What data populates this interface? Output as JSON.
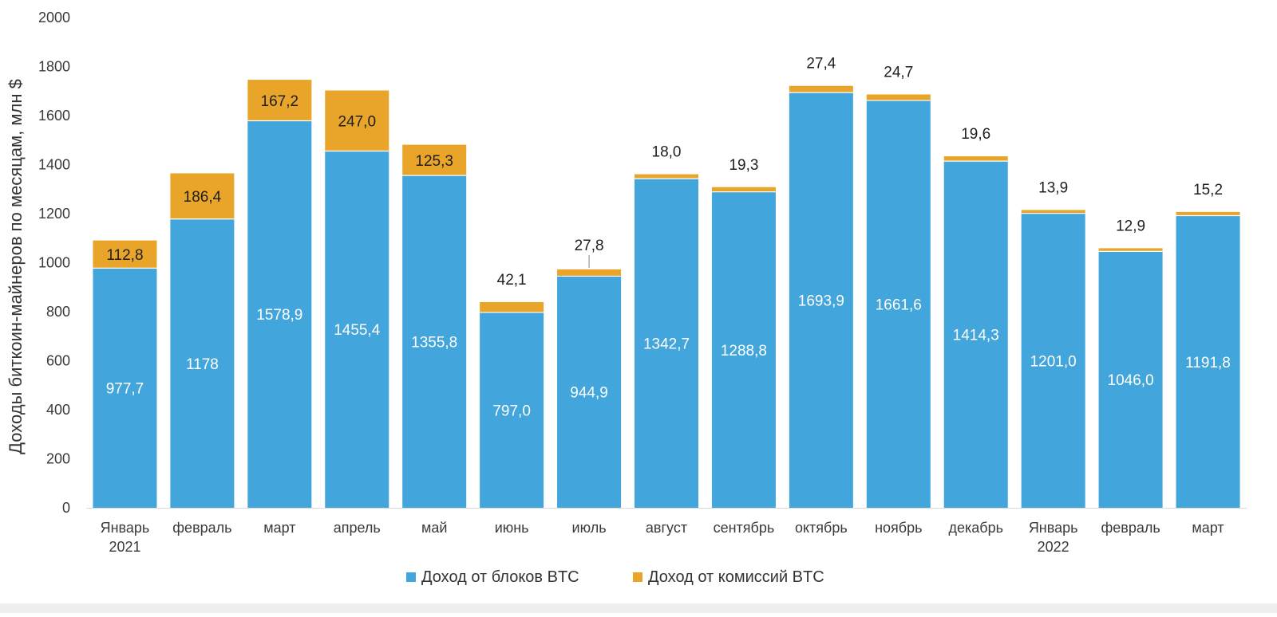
{
  "chart_data": {
    "type": "bar",
    "stacked": true,
    "ylabel": "Доходы биткоин-майнеров по месяцам, млн $",
    "xlabel": "",
    "ylim": [
      0,
      2000
    ],
    "yticks": [
      0,
      200,
      400,
      600,
      800,
      1000,
      1200,
      1400,
      1600,
      1800,
      2000
    ],
    "grid": false,
    "legend_position": "bottom-center",
    "categories": [
      [
        "Январь",
        "2021"
      ],
      [
        "февраль"
      ],
      [
        "март"
      ],
      [
        "апрель"
      ],
      [
        "май"
      ],
      [
        "июнь"
      ],
      [
        "июль"
      ],
      [
        "август"
      ],
      [
        "сентябрь"
      ],
      [
        "октябрь"
      ],
      [
        "ноябрь"
      ],
      [
        "декабрь"
      ],
      [
        "Январь",
        "2022"
      ],
      [
        "февраль"
      ],
      [
        "март"
      ]
    ],
    "series": [
      {
        "name": "Доход от блоков BTC",
        "color": "#42a5dc",
        "values": [
          977.7,
          1178,
          1578.9,
          1455.4,
          1355.8,
          797.0,
          944.9,
          1342.7,
          1288.8,
          1693.9,
          1661.6,
          1414.3,
          1201.0,
          1046.0,
          1191.8
        ],
        "labels": [
          "977,7",
          "1178",
          "1578,9",
          "1455,4",
          "1355,8",
          "797,0",
          "944,9",
          "1342,7",
          "1288,8",
          "1693,9",
          "1661,6",
          "1414,3",
          "1201,0",
          "1046,0",
          "1191,8"
        ]
      },
      {
        "name": "Доход от комиссий BTC",
        "color": "#e8a52a",
        "values": [
          112.8,
          186.4,
          167.2,
          247.0,
          125.3,
          42.1,
          27.8,
          18.0,
          19.3,
          27.4,
          24.7,
          19.6,
          13.9,
          12.9,
          15.2
        ],
        "labels": [
          "112,8",
          "186,4",
          "167,2",
          "247,0",
          "125,3",
          "42,1",
          "27,8",
          "18,0",
          "19,3",
          "27,4",
          "24,7",
          "19,6",
          "13,9",
          "12,9",
          "15,2"
        ]
      }
    ]
  }
}
